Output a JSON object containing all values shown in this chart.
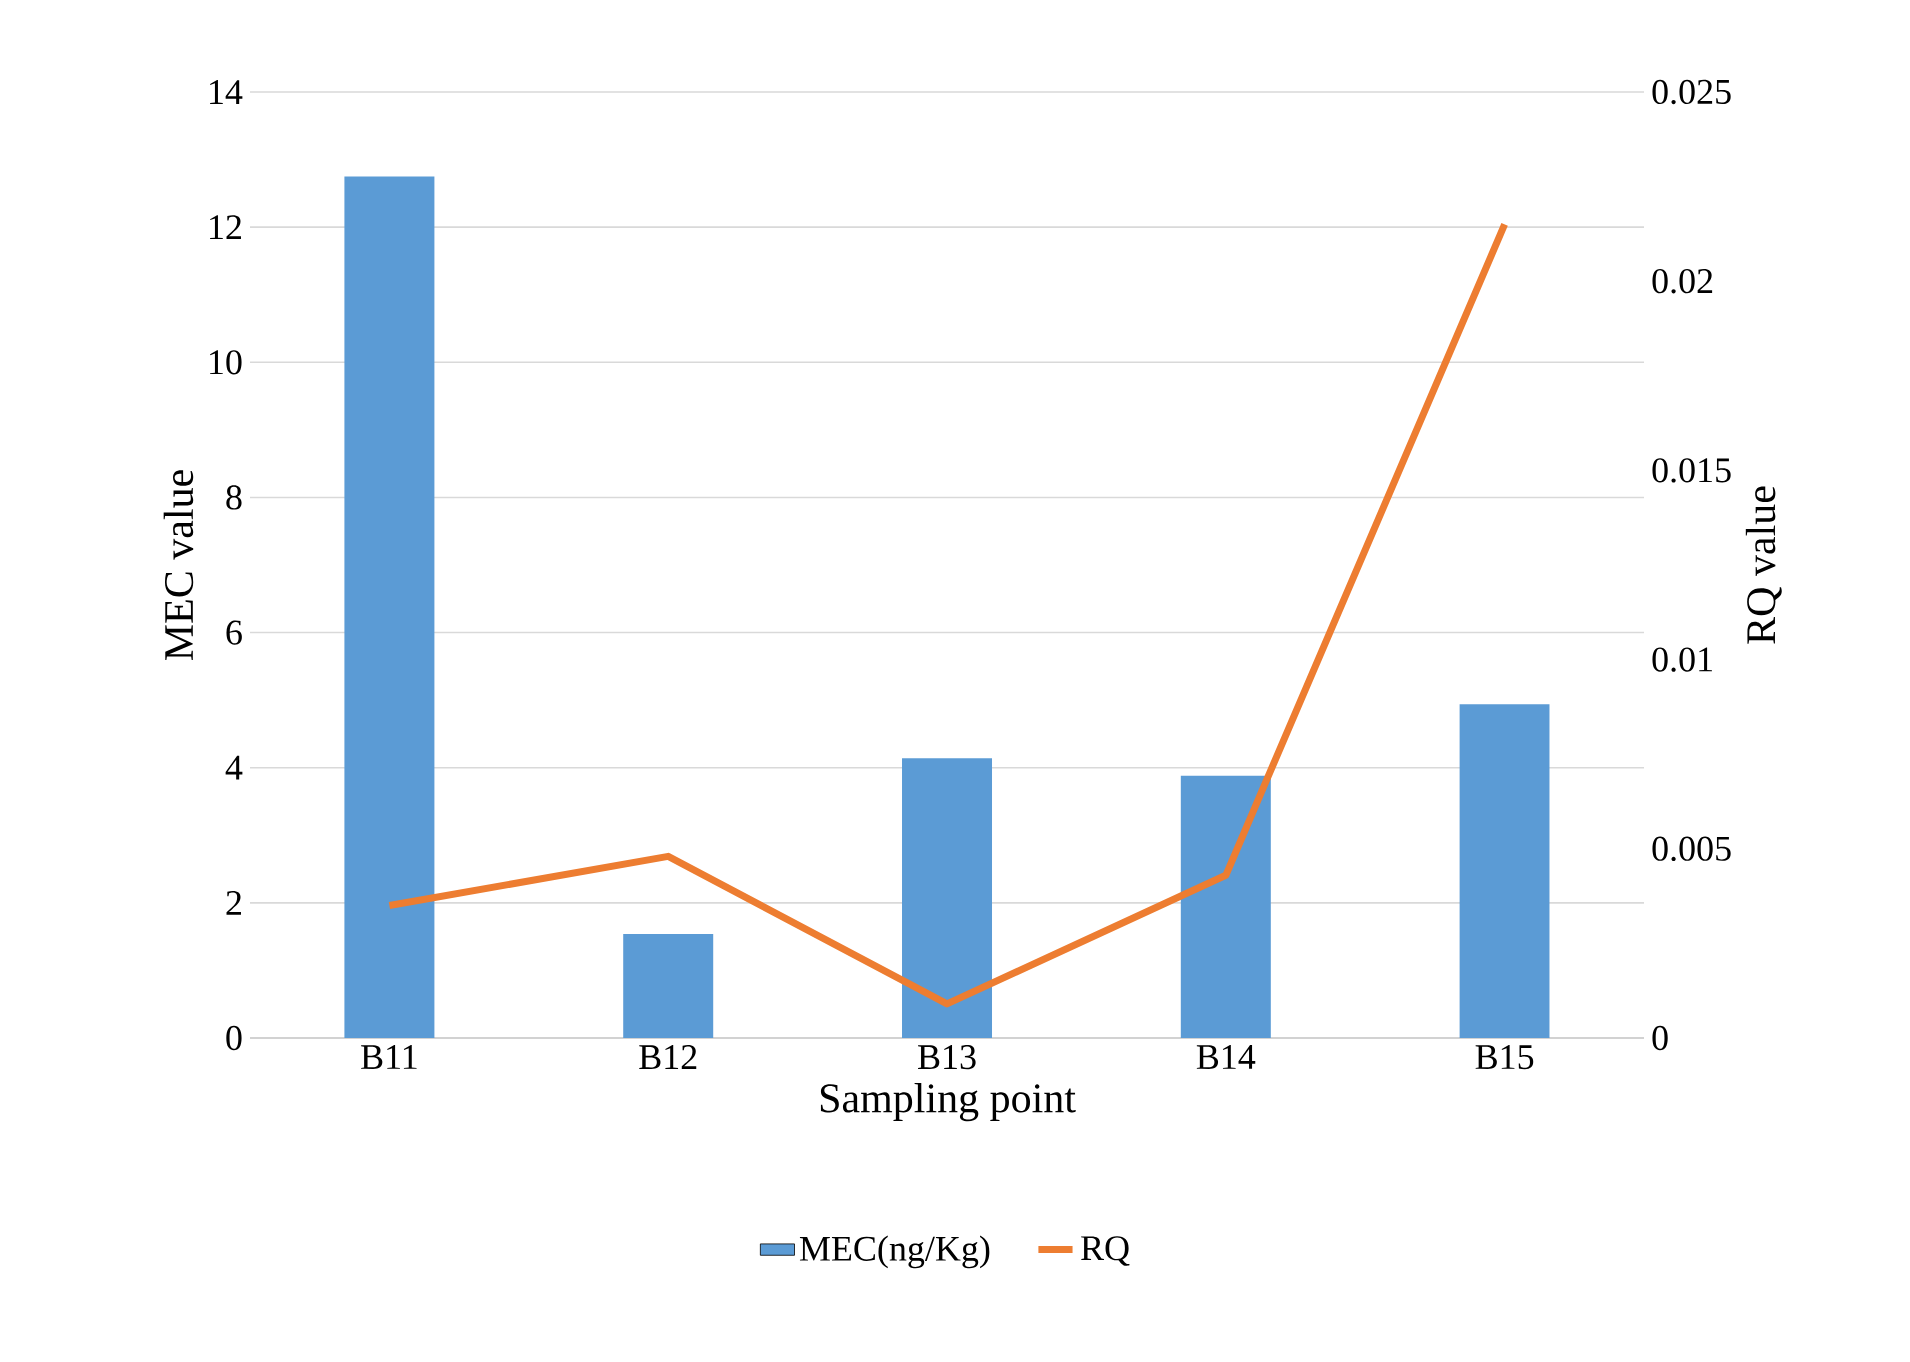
{
  "chart_data": {
    "type": "bar",
    "categories": [
      "B11",
      "B12",
      "B13",
      "B14",
      "B15"
    ],
    "xlabel": "Sampling point",
    "ylabel": "MEC value",
    "y2label": "RQ value",
    "ylim": [
      0,
      14
    ],
    "yticks": [
      0,
      2,
      4,
      6,
      8,
      10,
      12,
      14
    ],
    "y2lim": [
      0,
      0.025
    ],
    "y2ticks": [
      0,
      0.005,
      0.01,
      0.015,
      0.02,
      0.025
    ],
    "grid": "y",
    "legend": "bottom",
    "series": [
      {
        "name": "MEC(ng/Kg)",
        "color": "#5b9bd5",
        "values": [
          12.75,
          1.54,
          4.14,
          3.88,
          4.94
        ]
      },
      {
        "name": "RQ",
        "type": "line",
        "axis": "y2",
        "color": "#ed7d31",
        "values": [
          0.0035,
          0.0048,
          0.0009,
          0.0043,
          0.0215
        ]
      }
    ]
  }
}
